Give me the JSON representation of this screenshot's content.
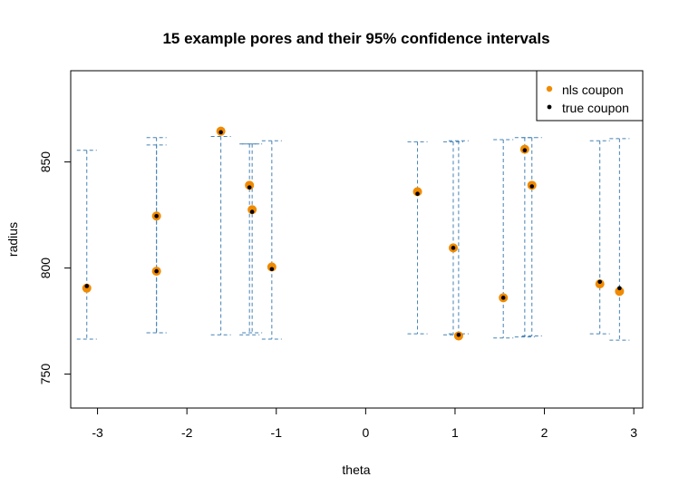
{
  "chart_data": {
    "type": "scatter",
    "title": "15 example pores and their 95% confidence intervals",
    "xlabel": "theta",
    "ylabel": "radius",
    "xlim": [
      -3.3,
      3.1
    ],
    "ylim": [
      734,
      893
    ],
    "x_ticks": [
      -3,
      -2,
      -1,
      0,
      1,
      2,
      3
    ],
    "y_ticks": [
      750,
      800,
      850
    ],
    "x_tick_labels": [
      "-3",
      "-2",
      "-1",
      "0",
      "1",
      "2",
      "3"
    ],
    "y_tick_labels": [
      "750",
      "800",
      "850"
    ],
    "grid": false,
    "legend_position": "top-right",
    "series": [
      {
        "name": "nls coupon",
        "color": "#f08a00",
        "marker": "filled-circle",
        "x": [
          -3.12,
          -2.34,
          -2.34,
          -1.62,
          -1.3,
          -1.27,
          -1.05,
          0.58,
          0.98,
          1.04,
          1.54,
          1.78,
          1.86,
          2.62,
          2.84
        ],
        "y": [
          790.5,
          798.5,
          824.5,
          864.5,
          839,
          827.5,
          800.5,
          836,
          809.5,
          768,
          786,
          856,
          839,
          792.5,
          789
        ]
      },
      {
        "name": "true coupon",
        "color": "#000000",
        "marker": "small-dot",
        "x": [
          -3.12,
          -2.34,
          -2.34,
          -1.62,
          -1.3,
          -1.27,
          -1.05,
          0.58,
          0.98,
          1.04,
          1.54,
          1.78,
          1.86,
          2.62,
          2.84
        ],
        "y": [
          791.5,
          798.5,
          824.5,
          864,
          838,
          826.5,
          799.5,
          835,
          809.5,
          768.5,
          786,
          855.5,
          838.5,
          793.5,
          790.5
        ]
      }
    ],
    "intervals": {
      "name": "95% confidence intervals",
      "color": "#4682b4",
      "x": [
        -3.12,
        -2.34,
        -2.34,
        -1.62,
        -1.3,
        -1.27,
        -1.05,
        0.58,
        0.98,
        1.04,
        1.54,
        1.78,
        1.86,
        2.62,
        2.84
      ],
      "lower": [
        766.5,
        769.5,
        769.5,
        768.5,
        768.5,
        769.5,
        766.5,
        769,
        768.5,
        769,
        767,
        767.5,
        768,
        769,
        766
      ],
      "upper": [
        855.5,
        861.5,
        858,
        862,
        858.5,
        858.5,
        860,
        859.5,
        859.5,
        860,
        860.5,
        861.5,
        861.5,
        860,
        861
      ]
    }
  }
}
